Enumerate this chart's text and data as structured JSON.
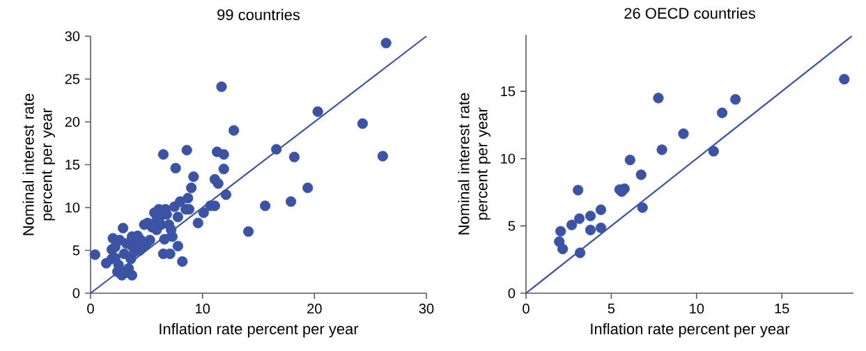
{
  "chart_data": [
    {
      "type": "scatter",
      "title": "99 countries",
      "xlabel": "Inflation rate percent per year",
      "ylabel": "Nominal interest rate percent per year",
      "xlim": [
        0,
        30
      ],
      "ylim": [
        0,
        30
      ],
      "xticks": [
        0,
        10,
        20,
        30
      ],
      "yticks": [
        0,
        5,
        10,
        15,
        20,
        25,
        30
      ],
      "series": [
        {
          "type": "scatter",
          "marker": "circle",
          "color": "#3a53a4",
          "x": [
            0.4,
            1.4,
            1.9,
            2.0,
            2.2,
            2.4,
            2.6,
            2.9,
            3.0,
            3.1,
            3.4,
            3.6,
            3.7,
            3.9,
            4.1,
            4.4,
            4.5,
            4.8,
            5.1,
            5.5,
            5.7,
            5.9,
            6.1,
            6.3,
            6.5,
            6.6,
            6.7,
            6.8,
            7.0,
            7.1,
            6.5,
            7.5,
            7.6,
            7.8,
            7.8,
            8.2,
            8.6,
            8.5,
            8.7,
            9.0,
            9.2,
            9.6,
            10.1,
            10.7,
            11.1,
            11.1,
            11.3,
            11.4,
            11.7,
            11.9,
            11.9,
            12.1,
            12.8,
            14.1,
            15.6,
            16.6,
            17.9,
            18.2,
            19.4,
            20.3,
            24.3,
            26.1,
            26.4,
            1.9,
            2.5,
            2.8,
            3.7,
            3.6,
            4.7,
            5.0,
            5.3,
            4.2,
            3.2,
            2.2,
            5.9,
            6.2,
            7.2,
            7.3,
            8.0,
            8.8
          ],
          "values": [
            4.5,
            3.5,
            5.1,
            6.4,
            4.1,
            2.5,
            6.2,
            7.6,
            4.6,
            2.4,
            2.9,
            5.6,
            6.6,
            4.8,
            5.9,
            5.0,
            6.2,
            8.0,
            8.2,
            7.7,
            9.4,
            7.4,
            9.8,
            8.0,
            16.2,
            6.3,
            9.8,
            9.2,
            8.0,
            4.6,
            4.6,
            10.1,
            14.6,
            8.9,
            5.5,
            3.7,
            16.7,
            9.8,
            11.1,
            12.3,
            13.6,
            8.2,
            9.4,
            10.2,
            10.2,
            13.3,
            16.5,
            12.8,
            24.1,
            14.5,
            16.2,
            11.5,
            19.0,
            7.2,
            10.2,
            16.8,
            10.7,
            15.9,
            12.3,
            21.2,
            19.8,
            16.0,
            29.2,
            4.0,
            3.3,
            2.1,
            2.1,
            4.0,
            5.4,
            5.8,
            6.2,
            6.7,
            5.8,
            5.4,
            8.5,
            8.9,
            7.4,
            6.6,
            10.7,
            9.8
          ]
        },
        {
          "type": "line",
          "marker": "none",
          "color": "#3a53a4",
          "x": [
            0,
            30
          ],
          "values": [
            0,
            30
          ]
        }
      ]
    },
    {
      "type": "scatter",
      "title": "26 OECD countries",
      "xlabel": "Inflation rate percent per year",
      "ylabel": "Nominal interest rate percent per year",
      "xlim": [
        0,
        19.2
      ],
      "ylim": [
        0,
        19.2
      ],
      "xticks": [
        0,
        5,
        10,
        15
      ],
      "yticks": [
        0,
        5,
        10,
        15
      ],
      "series": [
        {
          "type": "scatter",
          "marker": "circle",
          "color": "#3a53a4",
          "x": [
            7.76,
            9.23,
            7.97,
            6.1,
            6.75,
            5.49,
            5.77,
            5.61,
            3.05,
            6.83,
            4.39,
            3.78,
            3.13,
            2.68,
            2.03,
            3.78,
            4.39,
            1.95,
            2.15,
            3.17,
            12.28,
            11.5,
            11.0,
            18.66
          ],
          "values": [
            14.5,
            11.85,
            10.66,
            9.9,
            8.8,
            7.7,
            7.76,
            7.55,
            7.66,
            6.36,
            6.2,
            5.74,
            5.54,
            5.07,
            4.6,
            4.7,
            4.86,
            3.83,
            3.29,
            3.0,
            14.4,
            13.4,
            10.55,
            15.9
          ]
        },
        {
          "type": "line",
          "marker": "none",
          "color": "#3a53a4",
          "x": [
            0,
            19.1
          ],
          "values": [
            0,
            19.1
          ]
        }
      ]
    }
  ]
}
